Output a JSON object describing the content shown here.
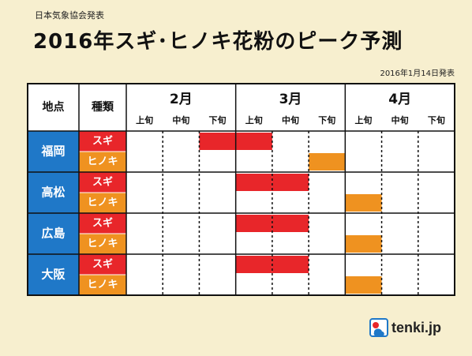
{
  "header": {
    "publisher": "日本気象協会発表",
    "title": "2016年スギ･ヒノキ花粉のピーク予測",
    "date": "2016年1月14日発表"
  },
  "logo": {
    "text": "tenki.jp",
    "icon": "tenki-logo-icon"
  },
  "colors": {
    "region_bg": "#1f78c8",
    "sugi": "#e8262a",
    "hinoki": "#ef9220",
    "grid": "#111111",
    "cell_bg": "#ffffff"
  },
  "chart_data": {
    "type": "table",
    "corner_labels": [
      "地点",
      "種類"
    ],
    "months": [
      "2月",
      "3月",
      "4月"
    ],
    "periods": [
      "上旬",
      "中旬",
      "下旬"
    ],
    "regions": [
      {
        "name": "福岡",
        "rows": [
          {
            "type": "スギ",
            "peak": [
              0,
              0,
              1,
              1,
              0,
              0,
              0,
              0,
              0
            ]
          },
          {
            "type": "ヒノキ",
            "peak": [
              0,
              0,
              0,
              0,
              0,
              1,
              0,
              0,
              0
            ]
          }
        ]
      },
      {
        "name": "高松",
        "rows": [
          {
            "type": "スギ",
            "peak": [
              0,
              0,
              0,
              1,
              1,
              0,
              0,
              0,
              0
            ]
          },
          {
            "type": "ヒノキ",
            "peak": [
              0,
              0,
              0,
              0,
              0,
              0,
              1,
              0,
              0
            ]
          }
        ]
      },
      {
        "name": "広島",
        "rows": [
          {
            "type": "スギ",
            "peak": [
              0,
              0,
              0,
              1,
              1,
              0,
              0,
              0,
              0
            ]
          },
          {
            "type": "ヒノキ",
            "peak": [
              0,
              0,
              0,
              0,
              0,
              0,
              1,
              0,
              0
            ]
          }
        ]
      },
      {
        "name": "大阪",
        "rows": [
          {
            "type": "スギ",
            "peak": [
              0,
              0,
              0,
              1,
              1,
              0,
              0,
              0,
              0
            ]
          },
          {
            "type": "ヒノキ",
            "peak": [
              0,
              0,
              0,
              0,
              0,
              0,
              1,
              0,
              0
            ]
          }
        ]
      }
    ]
  }
}
